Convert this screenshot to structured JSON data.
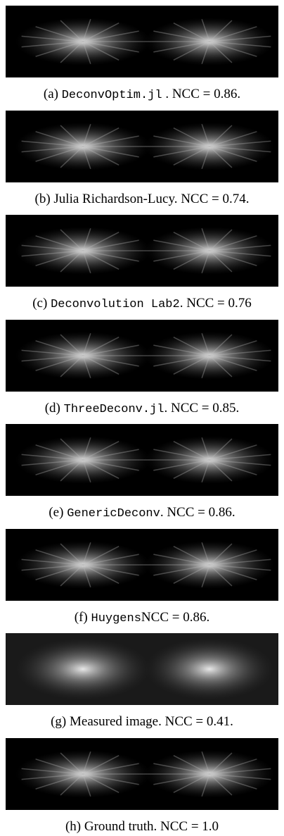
{
  "figure": {
    "panels": [
      {
        "caption": [
          {
            "text": "(a) "
          },
          {
            "text": "DeconvOptim.jl",
            "mono": true
          },
          {
            "text": " . NCC = 0.86."
          }
        ]
      },
      {
        "caption": [
          {
            "text": "(b) Julia Richardson-Lucy. NCC = 0.74."
          }
        ]
      },
      {
        "caption": [
          {
            "text": "(c) "
          },
          {
            "text": "Deconvolution Lab2",
            "mono": true
          },
          {
            "text": ". NCC = 0.76"
          }
        ]
      },
      {
        "caption": [
          {
            "text": "(d) "
          },
          {
            "text": "ThreeDeconv.jl",
            "mono": true
          },
          {
            "text": ". NCC = 0.85."
          }
        ]
      },
      {
        "caption": [
          {
            "text": "(e) "
          },
          {
            "text": "GenericDeconv",
            "mono": true
          },
          {
            "text": ". NCC = 0.86."
          }
        ]
      },
      {
        "caption": [
          {
            "text": "(f) "
          },
          {
            "text": "Huygens",
            "mono": true
          },
          {
            "text": "NCC = 0.86."
          }
        ]
      },
      {
        "caption": [
          {
            "text": "(g) Measured image. NCC = 0.41."
          }
        ]
      },
      {
        "caption": [
          {
            "text": "(h) Ground truth. NCC = 1.0"
          }
        ]
      }
    ]
  }
}
